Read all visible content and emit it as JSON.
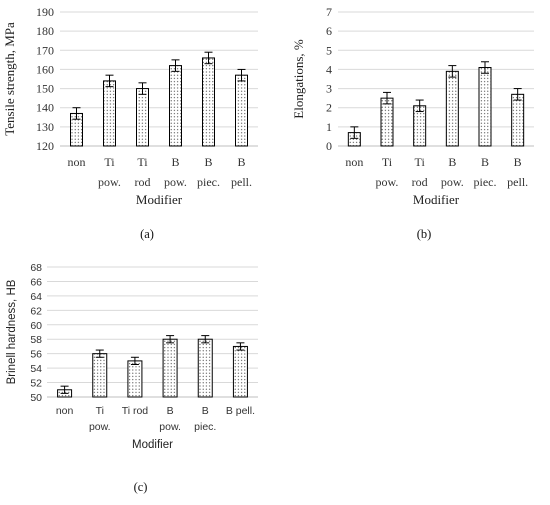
{
  "chart_data": [
    {
      "type": "bar",
      "panel_tag": "(a)",
      "categories": [
        [
          "non"
        ],
        [
          "Ti",
          "pow."
        ],
        [
          "Ti",
          "rod"
        ],
        [
          "B",
          "pow."
        ],
        [
          "B",
          "piec."
        ],
        [
          "B",
          "pell."
        ]
      ],
      "values": [
        137,
        154,
        150,
        162,
        166,
        157
      ],
      "errors": [
        3,
        3,
        3,
        3,
        3,
        3
      ],
      "yticks": [
        120,
        130,
        140,
        150,
        160,
        170,
        180,
        190
      ],
      "ylim": [
        120,
        190
      ],
      "xlabel": "Modifier",
      "ylabel": "Tensile strength, MPa",
      "grid": true,
      "legend": "none",
      "bar_fill": "dotted",
      "colors": {
        "grid": "#d9d9d9",
        "bar_edge": "#000000",
        "dots": "#333333"
      }
    },
    {
      "type": "bar",
      "panel_tag": "(b)",
      "categories": [
        [
          "non"
        ],
        [
          "Ti",
          "pow."
        ],
        [
          "Ti",
          "rod"
        ],
        [
          "B",
          "pow."
        ],
        [
          "B",
          "piec."
        ],
        [
          "B",
          "pell."
        ]
      ],
      "values": [
        0.7,
        2.5,
        2.1,
        3.9,
        4.1,
        2.7
      ],
      "errors": [
        0.3,
        0.3,
        0.3,
        0.3,
        0.3,
        0.3
      ],
      "yticks": [
        0,
        1,
        2,
        3,
        4,
        5,
        6,
        7
      ],
      "ylim": [
        0,
        7
      ],
      "xlabel": "Modifier",
      "ylabel": "Elongations, %",
      "grid": true,
      "legend": "none",
      "bar_fill": "dotted",
      "colors": {
        "grid": "#d9d9d9",
        "bar_edge": "#000000",
        "dots": "#333333"
      }
    },
    {
      "type": "bar",
      "panel_tag": "(c)",
      "categories": [
        [
          "non"
        ],
        [
          "Ti",
          "pow."
        ],
        [
          "Ti rod"
        ],
        [
          "B",
          "pow."
        ],
        [
          "B",
          "piec."
        ],
        [
          "B pell."
        ]
      ],
      "values": [
        51,
        56,
        55,
        58,
        58,
        57
      ],
      "errors": [
        0.5,
        0.5,
        0.5,
        0.5,
        0.5,
        0.5
      ],
      "yticks": [
        50,
        52,
        54,
        56,
        58,
        60,
        62,
        64,
        66,
        68
      ],
      "ylim": [
        50,
        68
      ],
      "xlabel": "Modifier",
      "ylabel": "Brinell hardness, HB",
      "grid": true,
      "legend": "none",
      "bar_fill": "dotted",
      "colors": {
        "grid": "#d9d9d9",
        "bar_edge": "#000000",
        "dots": "#333333"
      }
    }
  ]
}
